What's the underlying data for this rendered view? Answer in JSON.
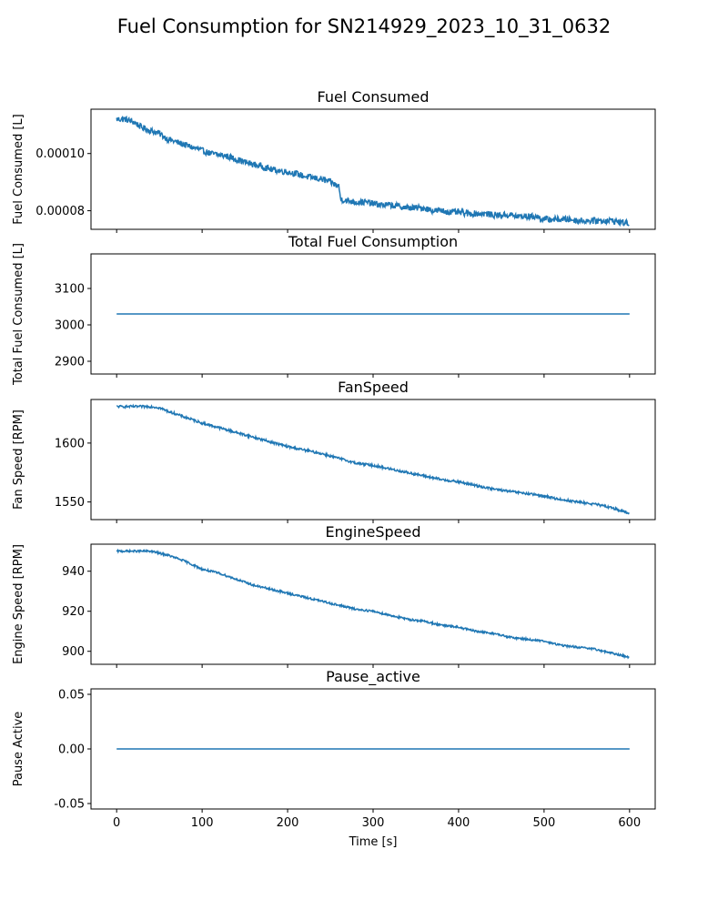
{
  "figure": {
    "suptitle": "Fuel Consumption for SN214929_2023_10_31_0632",
    "xlabel": "Time [s]"
  },
  "colors": {
    "line": "#1f77b4",
    "axes": "#000000",
    "background": "#ffffff"
  },
  "chart_data": [
    {
      "type": "line",
      "title": "Fuel Consumed",
      "xlabel": "",
      "ylabel": "Fuel Consumed [L]",
      "xlim": [
        -30,
        630
      ],
      "ylim": [
        7.35e-05,
        0.0001155
      ],
      "xticks": [
        0,
        100,
        200,
        300,
        400,
        500,
        600
      ],
      "yticks": [
        8e-05,
        0.0001
      ],
      "ytick_labels": [
        "0.00008",
        "0.00010"
      ],
      "xtick_labels_visible": false,
      "noise": 1.1e-06,
      "series": [
        {
          "x": [
            0,
            10,
            20,
            30,
            40,
            50,
            60,
            70,
            80,
            90,
            100,
            110,
            120,
            130,
            140,
            150,
            160,
            170,
            180,
            190,
            200,
            210,
            220,
            230,
            240,
            250,
            260,
            262,
            270,
            280,
            290,
            300,
            310,
            320,
            330,
            340,
            350,
            360,
            370,
            380,
            390,
            400,
            410,
            420,
            430,
            440,
            450,
            460,
            470,
            480,
            490,
            500,
            510,
            520,
            530,
            540,
            550,
            560,
            570,
            580,
            590,
            600
          ],
          "y": [
            0.000112,
            0.000112,
            0.000111,
            0.000109,
            0.000108,
            0.000107,
            0.000105,
            0.000104,
            0.000103,
            0.000102,
            0.000101,
            0.0001,
            9.95e-05,
            9.9e-05,
            9.8e-05,
            9.7e-05,
            9.62e-05,
            9.55e-05,
            9.45e-05,
            9.4e-05,
            9.35e-05,
            9.3e-05,
            9.2e-05,
            9.15e-05,
            9.1e-05,
            9e-05,
            8.85e-05,
            8.4e-05,
            8.35e-05,
            8.3e-05,
            8.3e-05,
            8.25e-05,
            8.2e-05,
            8.2e-05,
            8.15e-05,
            8.1e-05,
            8.1e-05,
            8.1e-05,
            8e-05,
            8e-05,
            7.95e-05,
            7.95e-05,
            7.9e-05,
            7.9e-05,
            7.9e-05,
            7.85e-05,
            7.85e-05,
            7.85e-05,
            7.8e-05,
            7.8e-05,
            7.8e-05,
            7.7e-05,
            7.7e-05,
            7.7e-05,
            7.7e-05,
            7.65e-05,
            7.65e-05,
            7.65e-05,
            7.65e-05,
            7.65e-05,
            7.6e-05,
            7.55e-05
          ]
        }
      ]
    },
    {
      "type": "line",
      "title": "Total Fuel Consumption",
      "xlabel": "",
      "ylabel": "Total Fuel Consumed [L]",
      "xlim": [
        -30,
        630
      ],
      "ylim": [
        2865,
        3195
      ],
      "xticks": [
        0,
        100,
        200,
        300,
        400,
        500,
        600
      ],
      "yticks": [
        2900,
        3000,
        3100
      ],
      "ytick_labels": [
        "2900",
        "3000",
        "3100"
      ],
      "xtick_labels_visible": false,
      "noise": 0,
      "series": [
        {
          "x": [
            0,
            600
          ],
          "y": [
            3030,
            3030
          ]
        }
      ]
    },
    {
      "type": "line",
      "title": "FanSpeed",
      "xlabel": "",
      "ylabel": "Fan Speed [RPM]",
      "xlim": [
        -30,
        630
      ],
      "ylim": [
        1535,
        1637
      ],
      "xticks": [
        0,
        100,
        200,
        300,
        400,
        500,
        600
      ],
      "yticks": [
        1550,
        1600
      ],
      "ytick_labels": [
        "1550",
        "1600"
      ],
      "xtick_labels_visible": false,
      "noise": 1.0,
      "series": [
        {
          "x": [
            0,
            20,
            40,
            50,
            60,
            80,
            100,
            120,
            140,
            160,
            180,
            200,
            220,
            240,
            260,
            280,
            300,
            320,
            340,
            360,
            380,
            400,
            420,
            440,
            460,
            480,
            500,
            520,
            540,
            560,
            580,
            600
          ],
          "y": [
            1631,
            1631,
            1631,
            1630,
            1627,
            1622,
            1617,
            1613,
            1609,
            1605,
            1601,
            1597,
            1594,
            1591,
            1587,
            1583,
            1581,
            1578,
            1575,
            1572,
            1569,
            1567,
            1564,
            1561,
            1559,
            1557,
            1555,
            1552,
            1550,
            1548,
            1545,
            1540
          ]
        }
      ]
    },
    {
      "type": "line",
      "title": "EngineSpeed",
      "xlabel": "",
      "ylabel": "Engine Speed [RPM]",
      "xlim": [
        -30,
        630
      ],
      "ylim": [
        893.5,
        953.5
      ],
      "xticks": [
        0,
        100,
        200,
        300,
        400,
        500,
        600
      ],
      "yticks": [
        900,
        920,
        940
      ],
      "ytick_labels": [
        "900",
        "920",
        "940"
      ],
      "xtick_labels_visible": false,
      "noise": 0.5,
      "series": [
        {
          "x": [
            0,
            20,
            40,
            50,
            60,
            80,
            100,
            120,
            140,
            160,
            180,
            200,
            220,
            240,
            260,
            280,
            300,
            320,
            340,
            360,
            380,
            400,
            420,
            440,
            460,
            480,
            500,
            520,
            540,
            560,
            580,
            600
          ],
          "y": [
            950,
            950,
            950,
            949,
            948,
            945,
            941,
            939,
            936,
            933,
            931,
            929,
            927,
            925,
            923,
            921,
            920,
            918,
            916,
            915,
            913,
            912,
            910,
            909,
            907,
            906,
            905,
            903,
            902,
            901,
            899,
            897
          ]
        }
      ]
    },
    {
      "type": "line",
      "title": "Pause_active",
      "xlabel": "Time [s]",
      "ylabel": "Pause Active",
      "xlim": [
        -30,
        630
      ],
      "ylim": [
        -0.055,
        0.055
      ],
      "xticks": [
        0,
        100,
        200,
        300,
        400,
        500,
        600
      ],
      "yticks": [
        -0.05,
        0.0,
        0.05
      ],
      "ytick_labels": [
        "-0.05",
        "0.00",
        "0.05"
      ],
      "xtick_labels_visible": true,
      "noise": 0,
      "series": [
        {
          "x": [
            0,
            600
          ],
          "y": [
            0,
            0
          ]
        }
      ]
    }
  ]
}
